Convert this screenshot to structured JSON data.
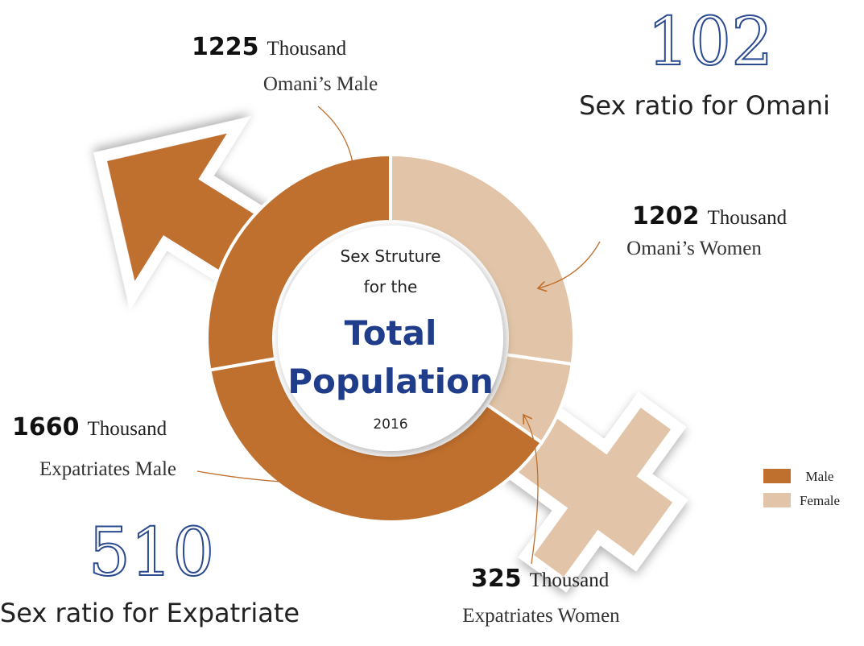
{
  "chart_data": {
    "type": "donut",
    "center_text": [
      "Sex Struture",
      "for the",
      "Total",
      "Population",
      "2016"
    ],
    "unit": "Thousand",
    "segments": [
      {
        "name": "Omani’s Women",
        "value": 1202,
        "color": "#e2c5a8"
      },
      {
        "name": "Expatriates Women",
        "value": 325,
        "color": "#e2c5a8"
      },
      {
        "name": "Expatriates Male",
        "value": 1660,
        "color": "#c0702e"
      },
      {
        "name": "Omani’s Male",
        "value": 1225,
        "color": "#c0702e"
      }
    ],
    "ratios": [
      {
        "value": 102,
        "label": "Sex ratio for Omani"
      },
      {
        "value": 510,
        "label": "Sex ratio for Expatriate"
      }
    ],
    "legend": [
      {
        "name": "Male",
        "color": "#c0702e"
      },
      {
        "name": "Female",
        "color": "#e2c5a8"
      }
    ]
  }
}
